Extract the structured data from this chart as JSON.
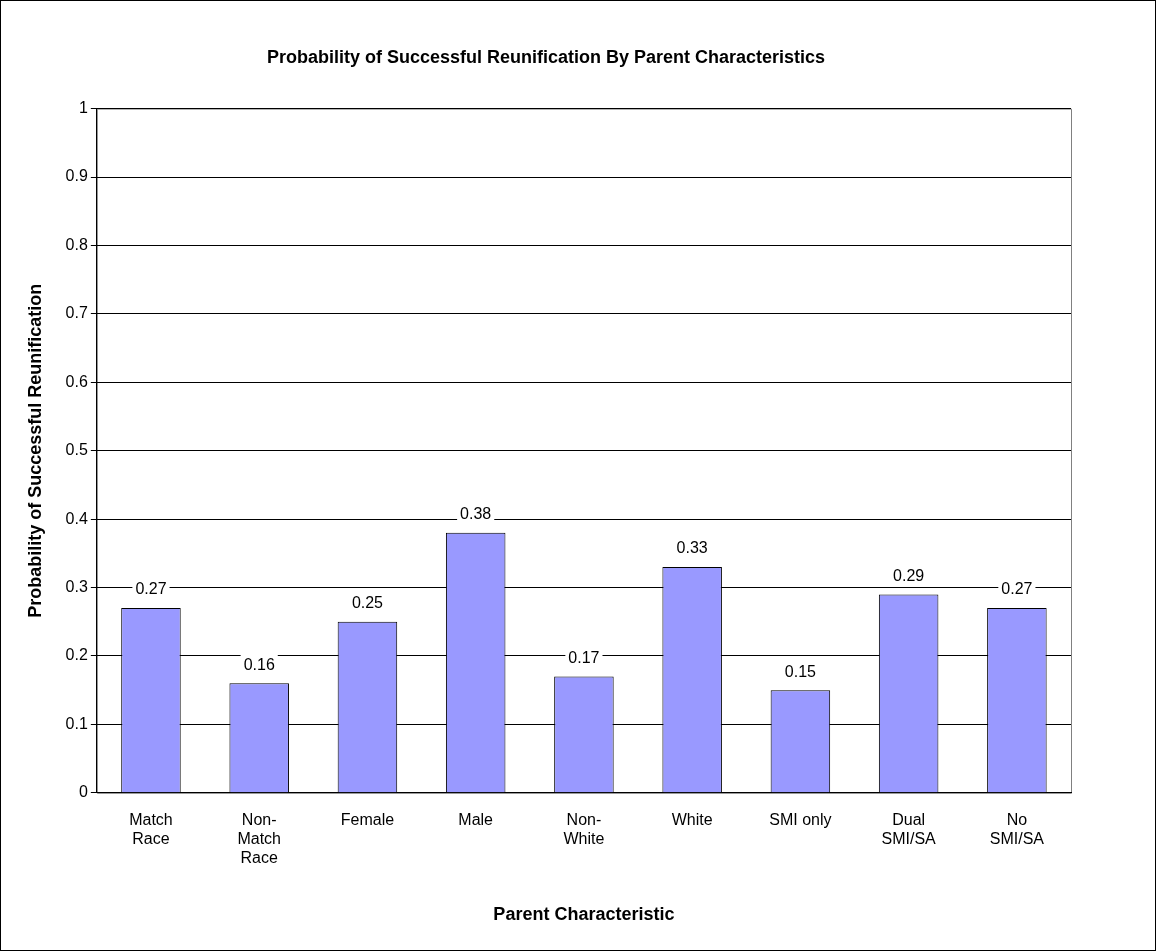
{
  "chart_data": {
    "type": "bar",
    "title": "Probability of Successful Reunification By Parent Characteristics",
    "xlabel": "Parent Characteristic",
    "ylabel": "Probability of Successful Reunification",
    "categories": [
      "Match Race",
      "Non-Match Race",
      "Female",
      "Male",
      "Non-White",
      "White",
      "SMI only",
      "Dual SMI/SA",
      "No SMI/SA"
    ],
    "values": [
      0.27,
      0.16,
      0.25,
      0.38,
      0.17,
      0.33,
      0.15,
      0.29,
      0.27
    ],
    "color": "#9999ff",
    "ylim": [
      0,
      1
    ],
    "yticks": [
      0,
      0.1,
      0.2,
      0.3,
      0.4,
      0.5,
      0.6,
      0.7,
      0.8,
      0.9,
      1
    ],
    "grid": "y",
    "data_labels": true,
    "legend": false
  }
}
